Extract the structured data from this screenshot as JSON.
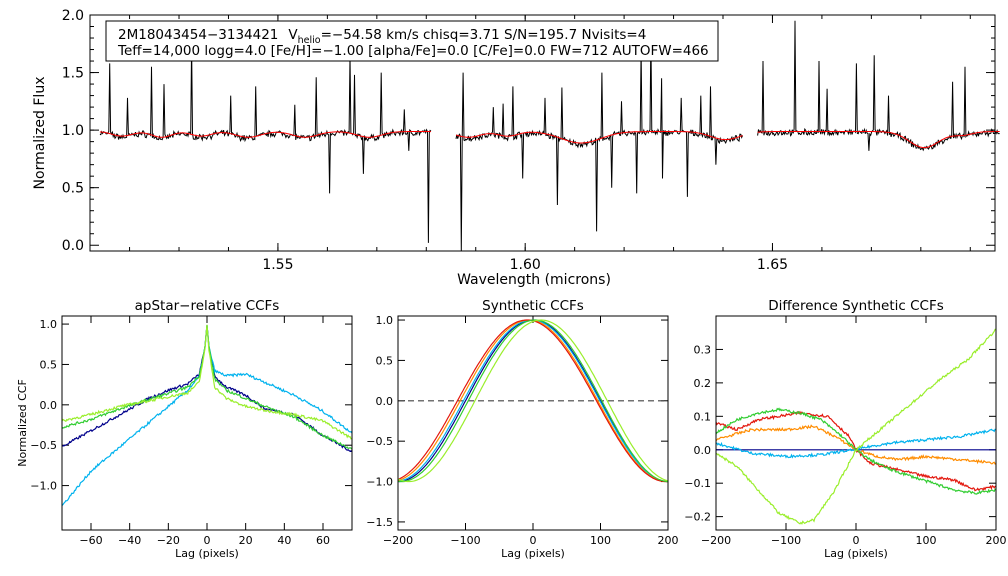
{
  "chart_data": {
    "spectrum": {
      "type": "line",
      "xlabel": "Wavelength (microns)",
      "ylabel": "Normalized Flux",
      "xlim": [
        1.512,
        1.695
      ],
      "ylim": [
        -0.05,
        2.0
      ],
      "xticks": [
        1.55,
        1.6,
        1.65
      ],
      "xtick_labels": [
        "1.55",
        "1.60",
        "1.65"
      ],
      "yticks": [
        0.0,
        0.5,
        1.0,
        1.5,
        2.0
      ],
      "ytick_labels": [
        "0.0",
        "0.5",
        "1.0",
        "1.5",
        "2.0"
      ],
      "annotation": {
        "line1_id": "2M18043454−3134421",
        "line1_v": "V",
        "line1_sub": "helio",
        "line1_rest": "=−54.58 km/s  chisq=3.71  S/N=195.7  Nvisits=4",
        "line2": "Teff=14,000 logg=4.0 [Fe/H]=−1.00 [alpha/Fe]=0.0 [C/Fe]=0.0 FW=712 AUTOFW=466"
      },
      "chip_ranges": [
        [
          1.514,
          1.581
        ],
        [
          1.586,
          1.644
        ],
        [
          1.647,
          1.696
        ]
      ],
      "baseline": 0.98,
      "continuum_dips": [
        {
          "center": 1.5185,
          "depth": 0.04,
          "width": 0.002
        },
        {
          "center": 1.5265,
          "depth": 0.05,
          "width": 0.002
        },
        {
          "center": 1.5345,
          "depth": 0.04,
          "width": 0.002
        },
        {
          "center": 1.544,
          "depth": 0.05,
          "width": 0.0025
        },
        {
          "center": 1.5555,
          "depth": 0.05,
          "width": 0.0025
        },
        {
          "center": 1.5685,
          "depth": 0.05,
          "width": 0.0025
        },
        {
          "center": 1.5885,
          "depth": 0.05,
          "width": 0.0025
        },
        {
          "center": 1.5965,
          "depth": 0.04,
          "width": 0.002
        },
        {
          "center": 1.6113,
          "depth": 0.1,
          "width": 0.004
        },
        {
          "center": 1.6405,
          "depth": 0.07,
          "width": 0.003
        },
        {
          "center": 1.6807,
          "depth": 0.14,
          "width": 0.003
        },
        {
          "center": 1.6885,
          "depth": 0.03,
          "width": 0.002
        }
      ],
      "emission_spikes": [
        {
          "x": 1.516,
          "y": 1.58
        },
        {
          "x": 1.5195,
          "y": 1.28
        },
        {
          "x": 1.5245,
          "y": 1.55
        },
        {
          "x": 1.527,
          "y": 1.4
        },
        {
          "x": 1.5325,
          "y": 1.75
        },
        {
          "x": 1.5405,
          "y": 1.3
        },
        {
          "x": 1.5455,
          "y": 1.38
        },
        {
          "x": 1.5535,
          "y": 1.22
        },
        {
          "x": 1.5578,
          "y": 1.46
        },
        {
          "x": 1.5645,
          "y": 1.65
        },
        {
          "x": 1.5655,
          "y": 1.48
        },
        {
          "x": 1.5708,
          "y": 1.5
        },
        {
          "x": 1.5755,
          "y": 1.18
        },
        {
          "x": 1.5875,
          "y": 1.5
        },
        {
          "x": 1.5935,
          "y": 1.2
        },
        {
          "x": 1.5955,
          "y": 1.23
        },
        {
          "x": 1.5975,
          "y": 1.38
        },
        {
          "x": 1.604,
          "y": 1.28
        },
        {
          "x": 1.6075,
          "y": 1.37
        },
        {
          "x": 1.6155,
          "y": 1.5
        },
        {
          "x": 1.6195,
          "y": 1.25
        },
        {
          "x": 1.6235,
          "y": 1.7
        },
        {
          "x": 1.6255,
          "y": 1.85
        },
        {
          "x": 1.6275,
          "y": 1.45
        },
        {
          "x": 1.6315,
          "y": 1.28
        },
        {
          "x": 1.6355,
          "y": 1.3
        },
        {
          "x": 1.6375,
          "y": 1.38
        },
        {
          "x": 1.648,
          "y": 1.6
        },
        {
          "x": 1.6545,
          "y": 1.95
        },
        {
          "x": 1.6595,
          "y": 1.6
        },
        {
          "x": 1.661,
          "y": 1.36
        },
        {
          "x": 1.667,
          "y": 1.58
        },
        {
          "x": 1.6705,
          "y": 1.65
        },
        {
          "x": 1.6735,
          "y": 1.3
        },
        {
          "x": 1.6865,
          "y": 1.42
        },
        {
          "x": 1.689,
          "y": 1.55
        }
      ],
      "absorption_spikes": [
        {
          "x": 1.5605,
          "y": 0.45
        },
        {
          "x": 1.5672,
          "y": 0.62
        },
        {
          "x": 1.5765,
          "y": 0.82
        },
        {
          "x": 1.5805,
          "y": 0.02
        },
        {
          "x": 1.587,
          "y": -0.05
        },
        {
          "x": 1.5995,
          "y": 0.58
        },
        {
          "x": 1.6065,
          "y": 0.35
        },
        {
          "x": 1.6145,
          "y": 0.12
        },
        {
          "x": 1.6175,
          "y": 0.5
        },
        {
          "x": 1.6225,
          "y": 0.45
        },
        {
          "x": 1.6278,
          "y": 0.58
        },
        {
          "x": 1.6328,
          "y": 0.42
        },
        {
          "x": 1.6385,
          "y": 0.7
        },
        {
          "x": 1.6695,
          "y": 0.82
        }
      ],
      "series": [
        {
          "name": "observed",
          "color": "#000000"
        },
        {
          "name": "model",
          "color": "#ff0000"
        }
      ]
    },
    "ccf_panels": [
      {
        "title": "apStar−relative CCFs",
        "xlabel": "Lag (pixels)",
        "ylabel": "Normalized CCF",
        "xlim": [
          -75,
          75
        ],
        "ylim": [
          -1.55,
          1.1
        ],
        "xticks": [
          -60,
          -40,
          -20,
          0,
          20,
          40,
          60
        ],
        "xtick_labels": [
          "−60",
          "−40",
          "−20",
          "0",
          "20",
          "40",
          "60"
        ],
        "yticks": [
          -1.0,
          -0.5,
          0.0,
          0.5,
          1.0
        ],
        "ytick_labels": [
          "−1.0",
          "−0.5",
          "0.0",
          "0.5",
          "1.0"
        ],
        "series": [
          {
            "name": "visit1",
            "color": "#00008b",
            "x": [
              -75,
              -60,
              -45,
              -30,
              -20,
              -10,
              -4,
              -1,
              0,
              1,
              4,
              10,
              20,
              30,
              45,
              60,
              75
            ],
            "y": [
              -0.52,
              -0.32,
              -0.12,
              0.08,
              0.18,
              0.26,
              0.38,
              0.72,
              0.98,
              0.72,
              0.35,
              0.22,
              0.12,
              -0.05,
              -0.12,
              -0.38,
              -0.58
            ]
          },
          {
            "name": "visit2",
            "color": "#00b2ee",
            "x": [
              -75,
              -60,
              -45,
              -30,
              -20,
              -10,
              -4,
              -1,
              0,
              1,
              4,
              10,
              20,
              30,
              45,
              60,
              75
            ],
            "y": [
              -1.25,
              -0.82,
              -0.52,
              -0.22,
              -0.02,
              0.18,
              0.35,
              0.72,
              0.98,
              0.72,
              0.42,
              0.36,
              0.38,
              0.28,
              0.12,
              -0.08,
              -0.35
            ]
          },
          {
            "name": "visit3",
            "color": "#32cd32",
            "x": [
              -75,
              -60,
              -45,
              -30,
              -20,
              -10,
              -4,
              -1,
              0,
              1,
              4,
              10,
              20,
              30,
              45,
              60,
              75
            ],
            "y": [
              -0.28,
              -0.18,
              -0.05,
              0.07,
              0.14,
              0.22,
              0.36,
              0.72,
              0.98,
              0.72,
              0.32,
              0.18,
              0.08,
              -0.02,
              -0.15,
              -0.38,
              -0.55
            ]
          },
          {
            "name": "visit4",
            "color": "#9aee2c",
            "x": [
              -75,
              -60,
              -45,
              -30,
              -20,
              -10,
              -4,
              -1,
              0,
              1,
              4,
              10,
              20,
              30,
              45,
              60,
              75
            ],
            "y": [
              -0.2,
              -0.12,
              -0.02,
              0.05,
              0.1,
              0.15,
              0.28,
              0.7,
              0.98,
              0.68,
              0.22,
              0.08,
              -0.02,
              -0.07,
              -0.12,
              -0.2,
              -0.42
            ]
          }
        ]
      },
      {
        "title": "Synthetic CCFs",
        "xlabel": "Lag (pixels)",
        "ylabel": "",
        "xlim": [
          -200,
          200
        ],
        "ylim": [
          -1.6,
          1.05
        ],
        "xticks": [
          -200,
          -100,
          0,
          100,
          200
        ],
        "xtick_labels": [
          "−200",
          "−100",
          "0",
          "100",
          "200"
        ],
        "yticks": [
          -1.5,
          -1.0,
          -0.5,
          0.0,
          0.5,
          1.0
        ],
        "ytick_labels": [
          "−1.5",
          "−1.0",
          "−0.5",
          "0.0",
          "0.5",
          "1.0"
        ],
        "zero_line": true,
        "series": [
          {
            "name": "synth-1",
            "color": "#00008b",
            "center": 0,
            "halfwidth": 100
          },
          {
            "name": "synth-2",
            "color": "#00b2ee",
            "center": -2,
            "halfwidth": 101
          },
          {
            "name": "synth-3",
            "color": "#ff8c00",
            "center": -6,
            "halfwidth": 102
          },
          {
            "name": "synth-4",
            "color": "#e3170d",
            "center": -9,
            "halfwidth": 103
          },
          {
            "name": "synth-5",
            "color": "#32cd32",
            "center": 3,
            "halfwidth": 99
          },
          {
            "name": "synth-6",
            "color": "#9aee2c",
            "center": 12,
            "halfwidth": 98
          }
        ]
      },
      {
        "title": "Difference Synthetic CCFs",
        "xlabel": "Lag (pixels)",
        "ylabel": "",
        "xlim": [
          -200,
          200
        ],
        "ylim": [
          -0.24,
          0.4
        ],
        "xticks": [
          -200,
          -100,
          0,
          100,
          200
        ],
        "xtick_labels": [
          "−200",
          "−100",
          "0",
          "100",
          "200"
        ],
        "yticks": [
          -0.2,
          -0.1,
          0.0,
          0.1,
          0.2,
          0.3
        ],
        "ytick_labels": [
          "−0.2",
          "−0.1",
          "0.0",
          "0.1",
          "0.2",
          "0.3"
        ],
        "series": [
          {
            "name": "diff-1",
            "color": "#00008b",
            "x": [
              -200,
              200
            ],
            "y": [
              0.0,
              0.0
            ]
          },
          {
            "name": "diff-2",
            "color": "#00b2ee",
            "x": [
              -200,
              -150,
              -100,
              -50,
              -20,
              0,
              20,
              50,
              100,
              150,
              200
            ],
            "y": [
              0.02,
              -0.01,
              -0.02,
              -0.015,
              -0.005,
              0.0,
              0.01,
              0.02,
              0.03,
              0.04,
              0.06
            ]
          },
          {
            "name": "diff-3",
            "color": "#ff8c00",
            "x": [
              -200,
              -150,
              -100,
              -60,
              -30,
              0,
              30,
              60,
              100,
              150,
              200
            ],
            "y": [
              0.03,
              0.06,
              0.06,
              0.07,
              0.04,
              0.0,
              -0.02,
              -0.03,
              -0.02,
              -0.03,
              -0.04
            ]
          },
          {
            "name": "diff-4",
            "color": "#e3170d",
            "x": [
              -200,
              -170,
              -140,
              -110,
              -80,
              -40,
              -10,
              0,
              20,
              60,
              100,
              140,
              170,
              200
            ],
            "y": [
              0.08,
              0.06,
              0.09,
              0.1,
              0.11,
              0.1,
              0.04,
              0.0,
              -0.04,
              -0.06,
              -0.08,
              -0.09,
              -0.12,
              -0.11
            ]
          },
          {
            "name": "diff-5",
            "color": "#32cd32",
            "x": [
              -200,
              -170,
              -140,
              -110,
              -80,
              -50,
              -20,
              0,
              20,
              50,
              80,
              110,
              140,
              170,
              200
            ],
            "y": [
              0.05,
              0.09,
              0.11,
              0.12,
              0.11,
              0.09,
              0.04,
              0.0,
              -0.03,
              -0.06,
              -0.08,
              -0.1,
              -0.12,
              -0.13,
              -0.12
            ]
          },
          {
            "name": "diff-6",
            "color": "#9aee2c",
            "x": [
              -200,
              -170,
              -140,
              -110,
              -80,
              -60,
              -30,
              0,
              40,
              80,
              120,
              160,
              200
            ],
            "y": [
              -0.01,
              -0.05,
              -0.12,
              -0.19,
              -0.22,
              -0.21,
              -0.12,
              0.0,
              0.07,
              0.14,
              0.21,
              0.27,
              0.36
            ]
          }
        ]
      }
    ]
  }
}
